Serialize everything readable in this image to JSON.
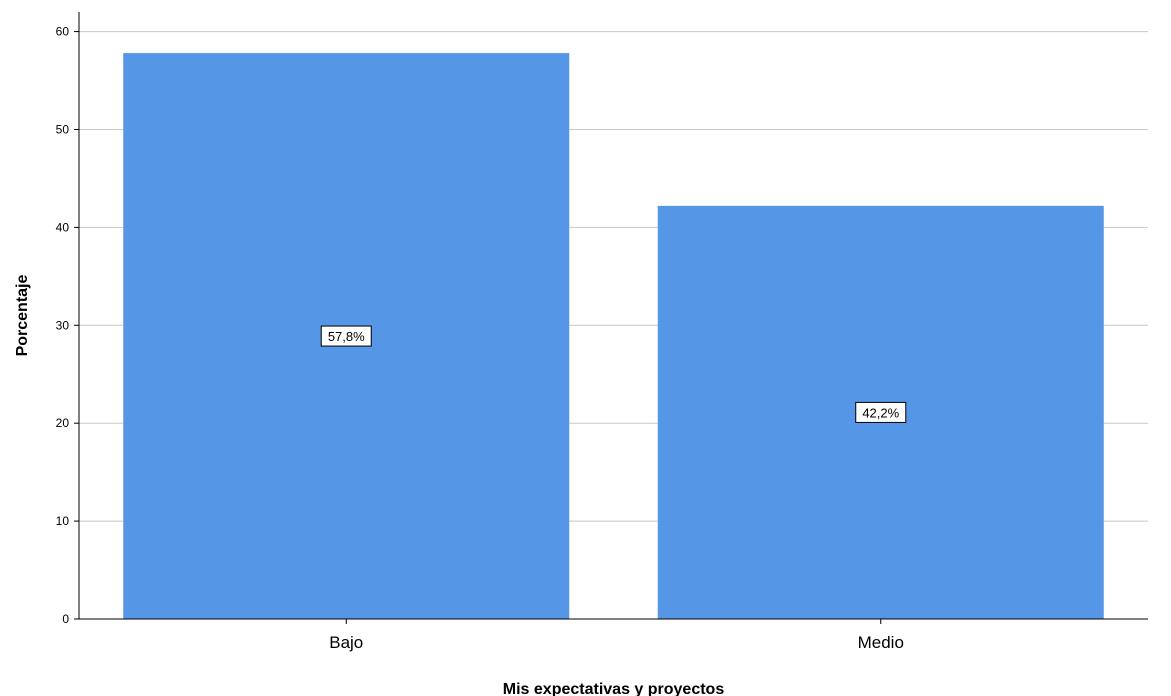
{
  "chart_data": {
    "type": "bar",
    "categories": [
      "Bajo",
      "Medio"
    ],
    "values": [
      57.8,
      42.2
    ],
    "data_labels": [
      "57,8%",
      "42,2%"
    ],
    "title": "",
    "xlabel": "Mis expectativas y proyectos",
    "ylabel": "Porcentaje",
    "ylim": [
      0,
      62
    ],
    "yticks": [
      0,
      10,
      20,
      30,
      40,
      50,
      60
    ],
    "grid": true,
    "bar_color": "#5596e6"
  }
}
